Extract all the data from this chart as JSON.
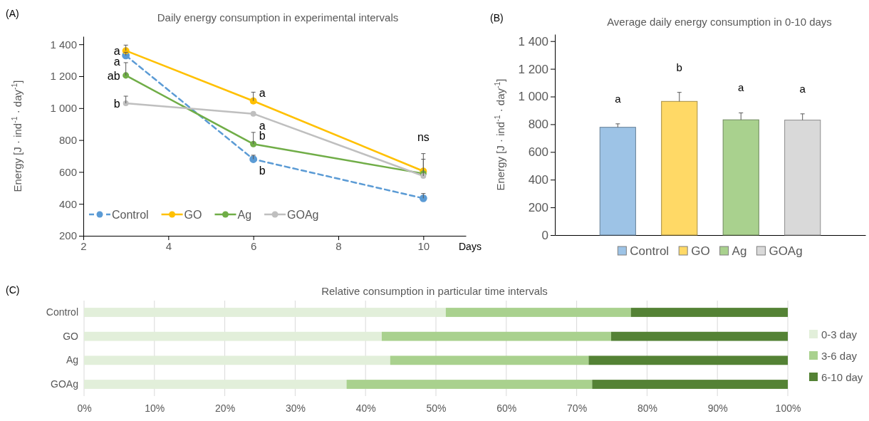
{
  "chart_data": [
    {
      "type": "line",
      "title": "Daily energy consumption in experimental intervals",
      "xlabel": "Days",
      "ylabel": "Energy [J · ind$^{-1}$ · day$^{-1}$]",
      "x": [
        3,
        6,
        10
      ],
      "xlim": [
        2,
        11
      ],
      "xticks": [
        2,
        4,
        6,
        8,
        10
      ],
      "ylim": [
        200,
        1450
      ],
      "yticks": [
        200,
        400,
        600,
        800,
        {
          "value": 1000,
          "label": "1 000"
        },
        {
          "value": 1200,
          "label": "1 200"
        },
        {
          "value": 1400,
          "label": "1 400"
        }
      ],
      "marker": "circle",
      "legend": "bottom left",
      "series": [
        {
          "name": "Control",
          "color": "#5b9bd5",
          "line_style": "dashed",
          "values": [
            1330,
            680,
            435
          ],
          "errors": [
            [
              1330,
              1350
            ],
            [
              680,
              705
            ],
            [
              435,
              465
            ]
          ]
        },
        {
          "name": "GO",
          "color": "#ffc000",
          "values": [
            1360,
            1045,
            605
          ],
          "errors": [
            [
              1360,
              1395
            ],
            [
              1045,
              1100
            ],
            [
              605,
              715
            ]
          ]
        },
        {
          "name": "Ag",
          "color": "#70ad47",
          "values": [
            1205,
            775,
            590
          ],
          "errors": [
            [
              1205,
              1285
            ],
            [
              775,
              848
            ],
            null
          ]
        },
        {
          "name": "GOAg",
          "color": "#bfbfbf",
          "values": [
            1030,
            965,
            575
          ],
          "errors": [
            [
              1030,
              1075
            ],
            null,
            [
              575,
              680
            ]
          ]
        }
      ],
      "annotations": [
        "(A)",
        {
          "text": "a",
          "x": 3,
          "y": 1360
        },
        {
          "text": "a",
          "x": 3,
          "y": 1330
        },
        {
          "text": "ab",
          "x": 3,
          "y": 1205
        },
        {
          "text": "b",
          "x": 3,
          "y": 1030
        },
        {
          "text": "a",
          "x": 6,
          "y": 1045
        },
        {
          "text": "a",
          "x": 6,
          "y": 965
        },
        {
          "text": "b",
          "x": 6,
          "y": 775
        },
        {
          "text": "b",
          "x": 6,
          "y": 680
        },
        {
          "text": "ns",
          "x": 10,
          "y": 605
        }
      ]
    },
    {
      "type": "bar",
      "stacked": true,
      "title": "Average daily energy consumption in 0-10 days",
      "ylabel": "Energy [J · ind$^{-1}$ · day$^{-1}$]",
      "categories": [
        null,
        null,
        null,
        null
      ],
      "ylim": [
        0,
        1450
      ],
      "yticks": [
        0,
        200,
        400,
        600,
        800,
        {
          "value": 1000,
          "label": "1 000"
        },
        {
          "value": 1200,
          "label": "1 200"
        },
        {
          "value": 1400,
          "label": "1 400"
        }
      ],
      "legend": "bottom",
      "series": [
        {
          "name": "Control",
          "color": "#9dc3e6",
          "values": [
            778,
            null,
            null,
            null
          ],
          "errors": [
            [
              778,
              803
            ],
            null,
            null,
            null
          ]
        },
        {
          "name": "GO",
          "color": "#ffd966",
          "values": [
            null,
            965,
            null,
            null
          ],
          "errors": [
            null,
            [
              965,
              1030
            ],
            null,
            null
          ]
        },
        {
          "name": "Ag",
          "color": "#a9d18e",
          "values": [
            null,
            null,
            832,
            null
          ],
          "errors": [
            null,
            null,
            [
              832,
              882
            ],
            null
          ]
        },
        {
          "name": "GOAg",
          "color": "#d9d9d9",
          "values": [
            null,
            null,
            null,
            830
          ],
          "errors": [
            null,
            null,
            null,
            [
              830,
              875
            ]
          ]
        }
      ],
      "annotations": [
        "(B)",
        {
          "text": "a",
          "y": 778
        },
        {
          "text": "b",
          "y": 965
        },
        {
          "text": "a",
          "y": 832
        },
        {
          "text": "a",
          "y": 830
        }
      ]
    },
    {
      "type": "bar",
      "stacked": true,
      "orientation": "horizontal",
      "title": "Relative consumption in particular time intervals",
      "categories": [
        "Control",
        "GO",
        "Ag",
        "GOAg"
      ],
      "xlim": [
        0,
        100
      ],
      "xticks": [
        {
          "value": 0,
          "label": "0%"
        },
        {
          "value": 10,
          "label": "10%"
        },
        {
          "value": 20,
          "label": "20%"
        },
        {
          "value": 30,
          "label": "30%"
        },
        {
          "value": 40,
          "label": "40%"
        },
        {
          "value": 50,
          "label": "50%"
        },
        {
          "value": 60,
          "label": "60%"
        },
        {
          "value": 70,
          "label": "70%"
        },
        {
          "value": 80,
          "label": "80%"
        },
        {
          "value": 90,
          "label": "90%"
        },
        {
          "value": 100,
          "label": "100%"
        }
      ],
      "grid": "x",
      "legend": "right",
      "series": [
        {
          "name": "0-3 day",
          "color": "#e2efda",
          "values": [
            51.4,
            42.3,
            43.5,
            37.3
          ]
        },
        {
          "name": "3-6 day",
          "color": "#a9d18e",
          "values": [
            26.3,
            32.6,
            28.2,
            34.9
          ]
        },
        {
          "name": "6-10 day",
          "color": "#548235",
          "values": [
            22.3,
            25.1,
            28.3,
            27.8
          ]
        }
      ],
      "annotations": [
        "(C)"
      ]
    }
  ]
}
